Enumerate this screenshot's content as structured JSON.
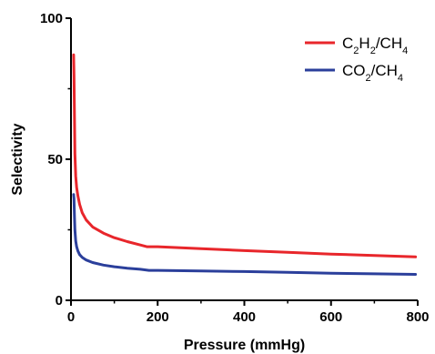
{
  "chart_data": {
    "type": "line",
    "title": "",
    "xlabel": "Pressure (mmHg)",
    "ylabel": "Selectivity",
    "xlim": [
      0,
      800
    ],
    "ylim": [
      0,
      100
    ],
    "xticks": [
      "0",
      "200",
      "400",
      "600",
      "800"
    ],
    "yticks": [
      "0",
      "50",
      "100"
    ],
    "grid": false,
    "legend_position": "top-right",
    "series": [
      {
        "name": "C2H2/CH4",
        "color": "#e8262b",
        "x": [
          6,
          7,
          8,
          9,
          11,
          13,
          16,
          20,
          26,
          35,
          50,
          75,
          100,
          130,
          160,
          175,
          200,
          300,
          400,
          500,
          600,
          700,
          795
        ],
        "y": [
          87,
          80,
          66,
          52,
          44,
          40,
          37,
          34,
          31,
          28.5,
          26,
          23.8,
          22.2,
          20.8,
          19.6,
          19,
          19,
          18.3,
          17.6,
          17,
          16.4,
          15.9,
          15.4
        ]
      },
      {
        "name": "CO2/CH4",
        "color": "#2b3f9b",
        "x": [
          6,
          7,
          8,
          9,
          11,
          13,
          16,
          20,
          26,
          35,
          50,
          75,
          100,
          130,
          160,
          180,
          200,
          300,
          400,
          500,
          600,
          700,
          795
        ],
        "y": [
          37.5,
          36,
          30,
          25,
          21,
          19,
          17.5,
          16.2,
          15.2,
          14.3,
          13.4,
          12.5,
          11.9,
          11.4,
          11,
          10.6,
          10.6,
          10.4,
          10.2,
          9.9,
          9.6,
          9.4,
          9.2
        ]
      }
    ],
    "legend": [
      {
        "main": [
          "C",
          "H",
          "/CH"
        ],
        "subs": [
          "2",
          "2",
          "4"
        ]
      },
      {
        "main": [
          "CO",
          "/CH"
        ],
        "subs": [
          "2",
          "4"
        ]
      }
    ]
  }
}
